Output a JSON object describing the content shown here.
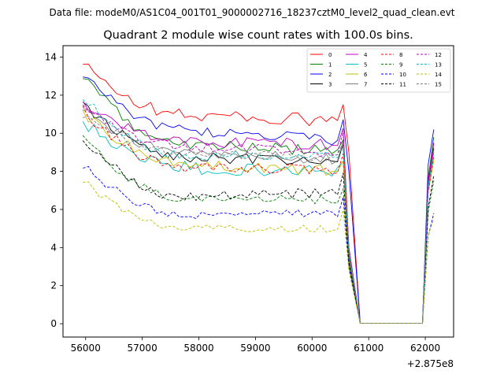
{
  "chart_data": {
    "type": "line",
    "suptitle": "Data file: modeM0/AS1C04_001T01_9000002716_18237cztM0_level2_quad_clean.evt",
    "title": "Quadrant 2 module wise count rates with 100.0s bins.",
    "xlabel": "",
    "ylabel": "",
    "x_offset_label": "+2.875e8",
    "xlim": [
      55600,
      62500
    ],
    "ylim": [
      -0.7,
      14.6
    ],
    "xticks": [
      56000,
      57000,
      58000,
      59000,
      60000,
      61000,
      62000
    ],
    "xtick_labels": [
      "56000",
      "57000",
      "58000",
      "59000",
      "60000",
      "61000",
      "62000"
    ],
    "yticks": [
      0,
      2,
      4,
      6,
      8,
      10,
      12,
      14
    ],
    "ytick_labels": [
      "0",
      "2",
      "4",
      "6",
      "8",
      "10",
      "12",
      "14"
    ],
    "grid": false,
    "legend_position": "top-right",
    "legend_columns": 4,
    "segments": [
      {
        "t0": 55950,
        "dt": 100,
        "n": 48
      },
      {
        "t0": 60850,
        "dt": 100,
        "n": 12
      },
      {
        "t0": 62050,
        "dt": 100,
        "n": 2
      }
    ],
    "series": [
      {
        "name": "0",
        "color": "#ff0000",
        "dash": "solid",
        "start": 13.6,
        "mid": 11.0,
        "end": 10.6,
        "amp": 0.35,
        "drop": 9.0,
        "final": 9.5
      },
      {
        "name": "1",
        "color": "#008000",
        "dash": "solid",
        "start": 12.9,
        "mid": 9.5,
        "end": 9.0,
        "amp": 0.3,
        "drop": 4.0,
        "final": 9.8
      },
      {
        "name": "2",
        "color": "#0000ff",
        "dash": "solid",
        "start": 13.2,
        "mid": 10.2,
        "end": 9.6,
        "amp": 0.3,
        "drop": 8.0,
        "final": 10.2
      },
      {
        "name": "3",
        "color": "#000000",
        "dash": "solid",
        "start": 11.5,
        "mid": 8.8,
        "end": 8.4,
        "amp": 0.28,
        "drop": 3.5,
        "final": 9.2
      },
      {
        "name": "4",
        "color": "#bf00bf",
        "dash": "solid",
        "start": 11.6,
        "mid": 9.6,
        "end": 9.4,
        "amp": 0.3,
        "drop": 4.0,
        "final": 9.5
      },
      {
        "name": "5",
        "color": "#00bfbf",
        "dash": "solid",
        "start": 10.6,
        "mid": 8.2,
        "end": 8.0,
        "amp": 0.35,
        "drop": 3.8,
        "final": 9.0
      },
      {
        "name": "6",
        "color": "#bfbf00",
        "dash": "solid",
        "start": 11.1,
        "mid": 8.4,
        "end": 8.0,
        "amp": 0.28,
        "drop": 3.0,
        "final": 8.6
      },
      {
        "name": "7",
        "color": "#808080",
        "dash": "solid",
        "start": 11.3,
        "mid": 9.0,
        "end": 8.6,
        "amp": 0.28,
        "drop": 3.6,
        "final": 9.1
      },
      {
        "name": "8",
        "color": "#ff0000",
        "dash": "dashed",
        "start": 11.2,
        "mid": 8.2,
        "end": 8.1,
        "amp": 0.28,
        "drop": 3.7,
        "final": 8.8
      },
      {
        "name": "9",
        "color": "#008000",
        "dash": "dashed",
        "start": 9.7,
        "mid": 6.6,
        "end": 6.5,
        "amp": 0.22,
        "drop": 3.2,
        "final": 7.5
      },
      {
        "name": "10",
        "color": "#0000ff",
        "dash": "dashed",
        "start": 8.3,
        "mid": 5.7,
        "end": 5.8,
        "amp": 0.22,
        "drop": 3.0,
        "final": 5.8
      },
      {
        "name": "11",
        "color": "#000000",
        "dash": "dashed",
        "start": 9.7,
        "mid": 6.7,
        "end": 6.9,
        "amp": 0.25,
        "drop": 3.3,
        "final": 7.8
      },
      {
        "name": "12",
        "color": "#bf00bf",
        "dash": "dashed",
        "start": 11.4,
        "mid": 9.3,
        "end": 9.0,
        "amp": 0.28,
        "drop": 3.9,
        "final": 9.3
      },
      {
        "name": "13",
        "color": "#00bfbf",
        "dash": "dashed",
        "start": 11.8,
        "mid": 8.9,
        "end": 8.7,
        "amp": 0.28,
        "drop": 3.8,
        "final": 9.0
      },
      {
        "name": "14",
        "color": "#bfbf00",
        "dash": "dashed",
        "start": 7.5,
        "mid": 5.0,
        "end": 5.0,
        "amp": 0.2,
        "drop": 2.8,
        "final": 5.5
      },
      {
        "name": "15",
        "color": "#808080",
        "dash": "dashed",
        "start": 11.0,
        "mid": 8.9,
        "end": 8.7,
        "amp": 0.28,
        "drop": 3.7,
        "final": 9.0
      }
    ]
  }
}
